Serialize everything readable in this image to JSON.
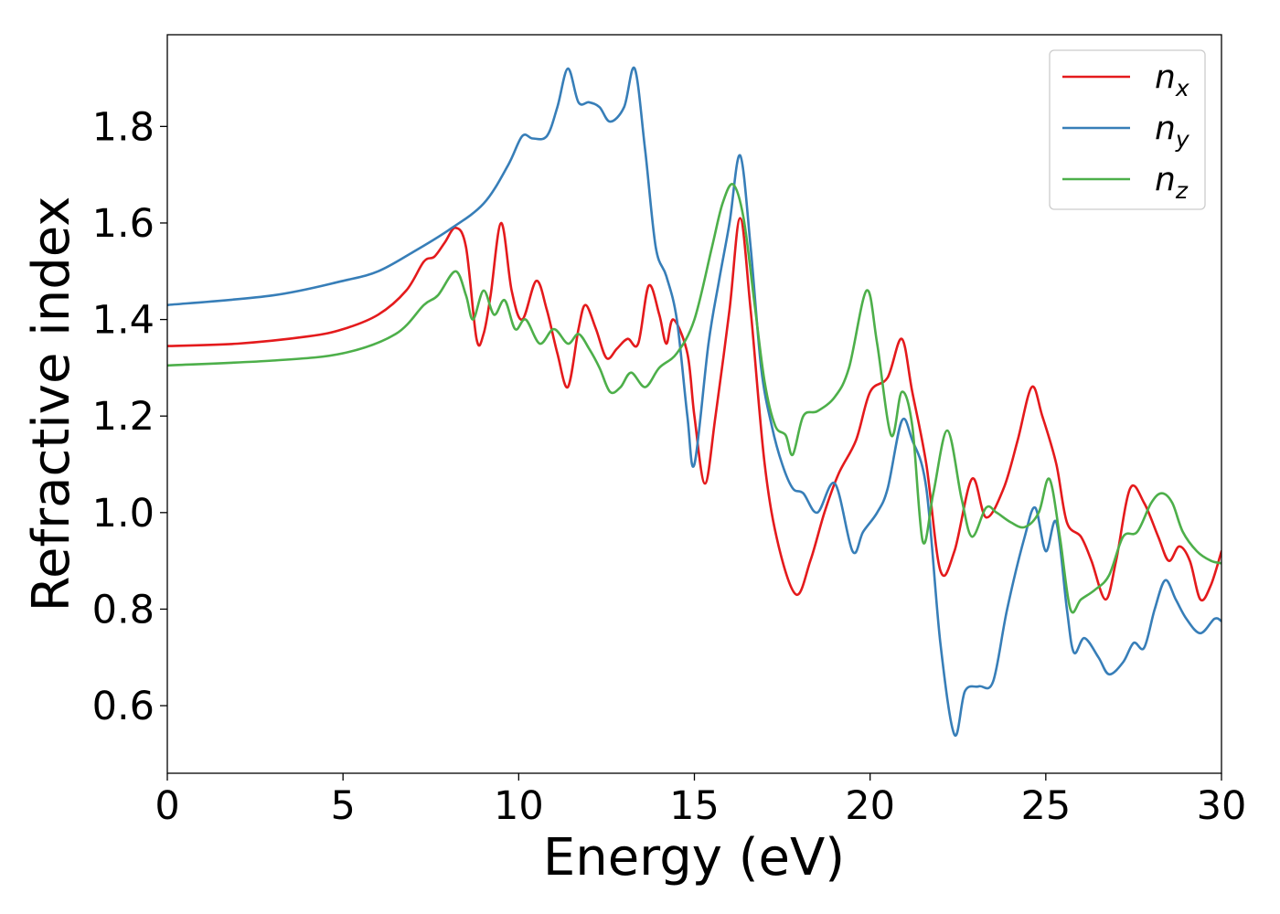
{
  "chart_data": {
    "type": "line",
    "title": "",
    "xlabel": "Energy (eV)",
    "ylabel": "Refractive index",
    "xlim": [
      0,
      30
    ],
    "ylim": [
      0.46,
      1.99
    ],
    "xticks": [
      0,
      5,
      10,
      15,
      20,
      25,
      30
    ],
    "xtick_labels": [
      "0",
      "5",
      "10",
      "15",
      "20",
      "25",
      "30"
    ],
    "yticks": [
      0.6,
      0.8,
      1.0,
      1.2,
      1.4,
      1.6,
      1.8
    ],
    "ytick_labels": [
      "0.6",
      "0.8",
      "1.0",
      "1.2",
      "1.4",
      "1.6",
      "1.8"
    ],
    "grid": false,
    "legend_position": "top-right",
    "series": [
      {
        "name": "n_x",
        "label_base": "n",
        "label_sub": "x",
        "color": "#e41a1c",
        "points": [
          [
            0,
            1.345
          ],
          [
            2,
            1.35
          ],
          [
            4,
            1.365
          ],
          [
            5,
            1.38
          ],
          [
            6,
            1.41
          ],
          [
            6.8,
            1.46
          ],
          [
            7.3,
            1.52
          ],
          [
            7.6,
            1.53
          ],
          [
            7.9,
            1.56
          ],
          [
            8.2,
            1.59
          ],
          [
            8.5,
            1.55
          ],
          [
            8.8,
            1.36
          ],
          [
            9.0,
            1.37
          ],
          [
            9.2,
            1.45
          ],
          [
            9.5,
            1.6
          ],
          [
            9.8,
            1.46
          ],
          [
            10.1,
            1.4
          ],
          [
            10.5,
            1.48
          ],
          [
            10.8,
            1.42
          ],
          [
            11.1,
            1.33
          ],
          [
            11.4,
            1.26
          ],
          [
            11.7,
            1.38
          ],
          [
            11.9,
            1.43
          ],
          [
            12.2,
            1.38
          ],
          [
            12.5,
            1.32
          ],
          [
            12.8,
            1.34
          ],
          [
            13.1,
            1.36
          ],
          [
            13.4,
            1.35
          ],
          [
            13.7,
            1.47
          ],
          [
            14.0,
            1.41
          ],
          [
            14.2,
            1.35
          ],
          [
            14.4,
            1.4
          ],
          [
            14.8,
            1.33
          ],
          [
            15.0,
            1.2
          ],
          [
            15.3,
            1.06
          ],
          [
            15.6,
            1.2
          ],
          [
            16.0,
            1.42
          ],
          [
            16.3,
            1.61
          ],
          [
            16.6,
            1.42
          ],
          [
            17.0,
            1.1
          ],
          [
            17.4,
            0.93
          ],
          [
            17.9,
            0.83
          ],
          [
            18.3,
            0.9
          ],
          [
            18.7,
            1.0
          ],
          [
            19.1,
            1.08
          ],
          [
            19.6,
            1.15
          ],
          [
            20.0,
            1.25
          ],
          [
            20.5,
            1.28
          ],
          [
            20.9,
            1.36
          ],
          [
            21.2,
            1.25
          ],
          [
            21.6,
            1.1
          ],
          [
            22.0,
            0.88
          ],
          [
            22.4,
            0.92
          ],
          [
            22.9,
            1.07
          ],
          [
            23.3,
            0.99
          ],
          [
            23.8,
            1.05
          ],
          [
            24.2,
            1.15
          ],
          [
            24.6,
            1.26
          ],
          [
            24.9,
            1.2
          ],
          [
            25.3,
            1.1
          ],
          [
            25.6,
            0.98
          ],
          [
            26.0,
            0.95
          ],
          [
            26.3,
            0.9
          ],
          [
            26.7,
            0.82
          ],
          [
            27.0,
            0.9
          ],
          [
            27.4,
            1.05
          ],
          [
            27.8,
            1.02
          ],
          [
            28.2,
            0.95
          ],
          [
            28.5,
            0.9
          ],
          [
            28.8,
            0.93
          ],
          [
            29.1,
            0.9
          ],
          [
            29.4,
            0.82
          ],
          [
            29.7,
            0.85
          ],
          [
            30,
            0.92
          ]
        ]
      },
      {
        "name": "n_y",
        "label_base": "n",
        "label_sub": "y",
        "color": "#377eb8",
        "points": [
          [
            0,
            1.43
          ],
          [
            3,
            1.45
          ],
          [
            5,
            1.48
          ],
          [
            6,
            1.5
          ],
          [
            7,
            1.54
          ],
          [
            8,
            1.585
          ],
          [
            9,
            1.64
          ],
          [
            9.7,
            1.72
          ],
          [
            10.1,
            1.78
          ],
          [
            10.4,
            1.775
          ],
          [
            10.8,
            1.78
          ],
          [
            11.1,
            1.84
          ],
          [
            11.4,
            1.92
          ],
          [
            11.7,
            1.85
          ],
          [
            12.0,
            1.85
          ],
          [
            12.3,
            1.84
          ],
          [
            12.6,
            1.81
          ],
          [
            13.0,
            1.84
          ],
          [
            13.3,
            1.92
          ],
          [
            13.6,
            1.75
          ],
          [
            13.9,
            1.55
          ],
          [
            14.2,
            1.49
          ],
          [
            14.5,
            1.4
          ],
          [
            14.8,
            1.2
          ],
          [
            15.0,
            1.1
          ],
          [
            15.4,
            1.35
          ],
          [
            15.7,
            1.48
          ],
          [
            16.0,
            1.6
          ],
          [
            16.3,
            1.74
          ],
          [
            16.6,
            1.55
          ],
          [
            16.9,
            1.3
          ],
          [
            17.2,
            1.18
          ],
          [
            17.5,
            1.1
          ],
          [
            17.8,
            1.05
          ],
          [
            18.1,
            1.04
          ],
          [
            18.5,
            1.0
          ],
          [
            19.0,
            1.06
          ],
          [
            19.5,
            0.92
          ],
          [
            19.8,
            0.96
          ],
          [
            20.2,
            1.0
          ],
          [
            20.5,
            1.05
          ],
          [
            20.9,
            1.19
          ],
          [
            21.2,
            1.15
          ],
          [
            21.6,
            1.05
          ],
          [
            22.0,
            0.73
          ],
          [
            22.4,
            0.54
          ],
          [
            22.7,
            0.63
          ],
          [
            23.1,
            0.64
          ],
          [
            23.5,
            0.65
          ],
          [
            23.9,
            0.8
          ],
          [
            24.4,
            0.95
          ],
          [
            24.7,
            1.01
          ],
          [
            25.0,
            0.92
          ],
          [
            25.3,
            0.98
          ],
          [
            25.6,
            0.8
          ],
          [
            25.8,
            0.71
          ],
          [
            26.1,
            0.74
          ],
          [
            26.5,
            0.7
          ],
          [
            26.8,
            0.665
          ],
          [
            27.2,
            0.69
          ],
          [
            27.5,
            0.73
          ],
          [
            27.8,
            0.72
          ],
          [
            28.1,
            0.8
          ],
          [
            28.4,
            0.86
          ],
          [
            28.7,
            0.82
          ],
          [
            29.0,
            0.78
          ],
          [
            29.4,
            0.75
          ],
          [
            29.8,
            0.78
          ],
          [
            30,
            0.775
          ]
        ]
      },
      {
        "name": "n_z",
        "label_base": "n",
        "label_sub": "z",
        "color": "#4daf4a",
        "points": [
          [
            0,
            1.305
          ],
          [
            3,
            1.315
          ],
          [
            5,
            1.33
          ],
          [
            6.5,
            1.37
          ],
          [
            7.3,
            1.43
          ],
          [
            7.7,
            1.45
          ],
          [
            8.2,
            1.5
          ],
          [
            8.5,
            1.45
          ],
          [
            8.7,
            1.4
          ],
          [
            9.0,
            1.46
          ],
          [
            9.3,
            1.41
          ],
          [
            9.6,
            1.44
          ],
          [
            9.9,
            1.38
          ],
          [
            10.2,
            1.4
          ],
          [
            10.6,
            1.35
          ],
          [
            11.0,
            1.38
          ],
          [
            11.4,
            1.35
          ],
          [
            11.7,
            1.37
          ],
          [
            12.0,
            1.34
          ],
          [
            12.3,
            1.3
          ],
          [
            12.6,
            1.25
          ],
          [
            12.9,
            1.26
          ],
          [
            13.2,
            1.29
          ],
          [
            13.6,
            1.26
          ],
          [
            14.0,
            1.3
          ],
          [
            14.5,
            1.33
          ],
          [
            15.0,
            1.4
          ],
          [
            15.5,
            1.55
          ],
          [
            15.8,
            1.64
          ],
          [
            16.1,
            1.68
          ],
          [
            16.4,
            1.61
          ],
          [
            16.7,
            1.44
          ],
          [
            17.0,
            1.27
          ],
          [
            17.3,
            1.18
          ],
          [
            17.6,
            1.16
          ],
          [
            17.8,
            1.12
          ],
          [
            18.1,
            1.2
          ],
          [
            18.5,
            1.21
          ],
          [
            19.0,
            1.24
          ],
          [
            19.4,
            1.3
          ],
          [
            19.9,
            1.46
          ],
          [
            20.2,
            1.35
          ],
          [
            20.6,
            1.16
          ],
          [
            20.9,
            1.25
          ],
          [
            21.2,
            1.18
          ],
          [
            21.5,
            0.94
          ],
          [
            21.8,
            1.04
          ],
          [
            22.2,
            1.17
          ],
          [
            22.6,
            1.03
          ],
          [
            22.9,
            0.95
          ],
          [
            23.3,
            1.01
          ],
          [
            23.6,
            1.0
          ],
          [
            24.0,
            0.98
          ],
          [
            24.4,
            0.97
          ],
          [
            24.8,
            1.0
          ],
          [
            25.1,
            1.07
          ],
          [
            25.4,
            0.95
          ],
          [
            25.7,
            0.8
          ],
          [
            26.0,
            0.82
          ],
          [
            26.4,
            0.84
          ],
          [
            26.8,
            0.87
          ],
          [
            27.2,
            0.95
          ],
          [
            27.6,
            0.96
          ],
          [
            28.0,
            1.02
          ],
          [
            28.3,
            1.04
          ],
          [
            28.6,
            1.02
          ],
          [
            28.9,
            0.96
          ],
          [
            29.3,
            0.92
          ],
          [
            29.7,
            0.9
          ],
          [
            30,
            0.895
          ]
        ]
      }
    ]
  }
}
